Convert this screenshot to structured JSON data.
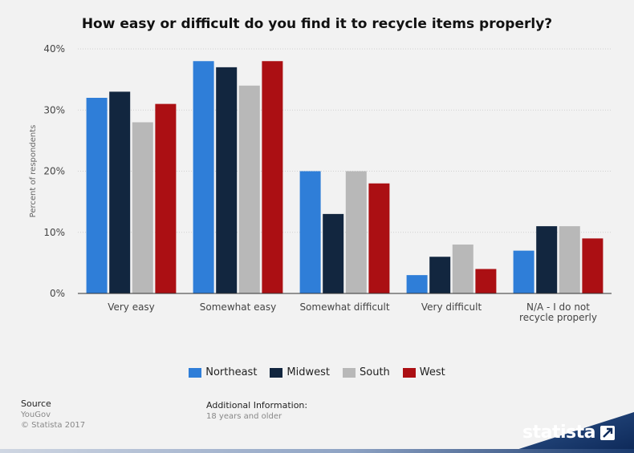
{
  "chart_data": {
    "type": "bar",
    "title": "How easy or difficult do you find it to recycle items properly?",
    "ylabel": "Percent of respondents",
    "xlabel": "",
    "ylim": [
      0,
      40
    ],
    "yticks": [
      "0%",
      "10%",
      "20%",
      "30%",
      "40%"
    ],
    "ytick_values": [
      0,
      10,
      20,
      30,
      40
    ],
    "categories": [
      "Very easy",
      "Somewhat easy",
      "Somewhat difficult",
      "Very difficult",
      "N/A - I do not recycle properly"
    ],
    "category_label_lines": [
      [
        "Very easy"
      ],
      [
        "Somewhat easy"
      ],
      [
        "Somewhat difficult"
      ],
      [
        "Very difficult"
      ],
      [
        "N/A - I do not",
        "recycle properly"
      ]
    ],
    "series": [
      {
        "name": "Northeast",
        "color": "#2f7ed8",
        "values": [
          32,
          38,
          20,
          3,
          7
        ]
      },
      {
        "name": "Midwest",
        "color": "#12263f",
        "values": [
          33,
          37,
          13,
          6,
          11
        ]
      },
      {
        "name": "South",
        "color": "#b8b8b8",
        "values": [
          28,
          34,
          20,
          8,
          11
        ]
      },
      {
        "name": "West",
        "color": "#ab0f13",
        "values": [
          31,
          38,
          18,
          4,
          9
        ]
      }
    ],
    "grid": true,
    "legend_position": "bottom"
  },
  "footer": {
    "source_label": "Source",
    "source": "YouGov",
    "copyright": "© Statista 2017",
    "additional_info_label": "Additional Information:",
    "additional_info": "18 years and older"
  },
  "brand": {
    "name": "statista"
  },
  "colors": {
    "background": "#f2f2f2",
    "grid": "#d0d0d0",
    "axis": "#333333"
  }
}
